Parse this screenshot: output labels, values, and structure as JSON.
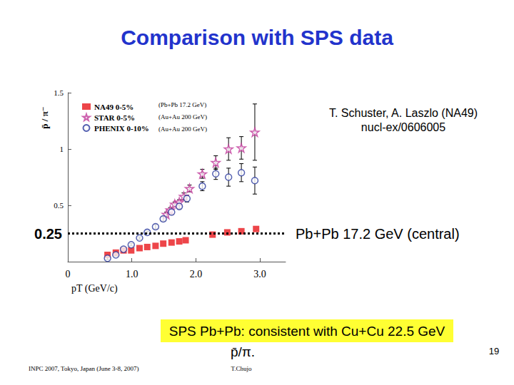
{
  "title": "Comparison with SPS data",
  "chart_data": {
    "type": "scatter",
    "y_label": "p̄ / π⁻",
    "x_label": "pT (GeV/c)",
    "xlim": [
      0,
      3.4
    ],
    "xticks": [
      0,
      {
        "value": 1,
        "label": "1.0"
      },
      {
        "value": 2,
        "label": "2.0"
      },
      {
        "value": 3,
        "label": "3.0"
      }
    ],
    "ylim": [
      0,
      1.5
    ],
    "yticks": [
      0.5,
      1,
      1.5
    ],
    "grid": false,
    "legend": "upper left",
    "series": [
      {
        "name": "NA49 0-5%",
        "system": "(Pb+Pb 17.2 GeV)",
        "color": "#e8161b",
        "marker": "square",
        "x": [
          0.62,
          0.75,
          0.87,
          0.99,
          1.12,
          1.24,
          1.37,
          1.49,
          1.62,
          1.74,
          1.84,
          2.26,
          2.49,
          2.71,
          2.94
        ],
        "values": [
          0.06,
          0.08,
          0.1,
          0.1,
          0.12,
          0.13,
          0.14,
          0.16,
          0.17,
          0.18,
          0.19,
          0.24,
          0.26,
          0.27,
          0.29
        ]
      },
      {
        "name": "STAR 0-5%",
        "system": "(Au+Au 200 GeV)",
        "color": "#c0399a",
        "marker": "open_star",
        "x": [
          1.54,
          1.6,
          1.67,
          1.74,
          1.81,
          1.9,
          2.1,
          2.31,
          2.51,
          2.71,
          2.92
        ],
        "values": [
          0.42,
          0.46,
          0.51,
          0.53,
          0.58,
          0.65,
          0.78,
          0.88,
          1.0,
          1.01,
          1.15
        ],
        "errors": [
          0.02,
          0.02,
          0.02,
          0.02,
          0.03,
          0.03,
          0.04,
          0.06,
          0.1,
          0.1,
          0.25
        ]
      },
      {
        "name": "PHENIX 0-10%",
        "system": "(Au+Au 200 GeV)",
        "color": "#2b3a9e",
        "marker": "open_circle",
        "x": [
          0.62,
          0.75,
          0.87,
          0.99,
          1.12,
          1.24,
          1.37,
          1.49,
          1.62,
          1.74,
          1.86,
          2.1,
          2.31,
          2.51,
          2.71,
          2.92
        ],
        "values": [
          0.03,
          0.06,
          0.11,
          0.15,
          0.21,
          0.26,
          0.31,
          0.38,
          0.44,
          0.49,
          0.56,
          0.67,
          0.78,
          0.75,
          0.79,
          0.72
        ],
        "errors": [
          0.01,
          0.01,
          0.01,
          0.01,
          0.01,
          0.01,
          0.02,
          0.02,
          0.02,
          0.02,
          0.03,
          0.04,
          0.05,
          0.08,
          0.08,
          0.12
        ]
      }
    ],
    "reference_line": {
      "value": 0.25,
      "label": "Pb+Pb 17.2 GeV (central)"
    },
    "annotation": [
      "T. Schuster, A. Laszlo (NA49)",
      "nucl-ex/0606005"
    ]
  },
  "highlight": [
    "SPS Pb+Pb: consistent with Cu+Cu 22.5 GeV",
    "p̄/π."
  ],
  "footer": {
    "left": "INPC 2007, Tokyo, Japan (June 3-8, 2007)",
    "center": "T.Chujo",
    "page": 19
  }
}
